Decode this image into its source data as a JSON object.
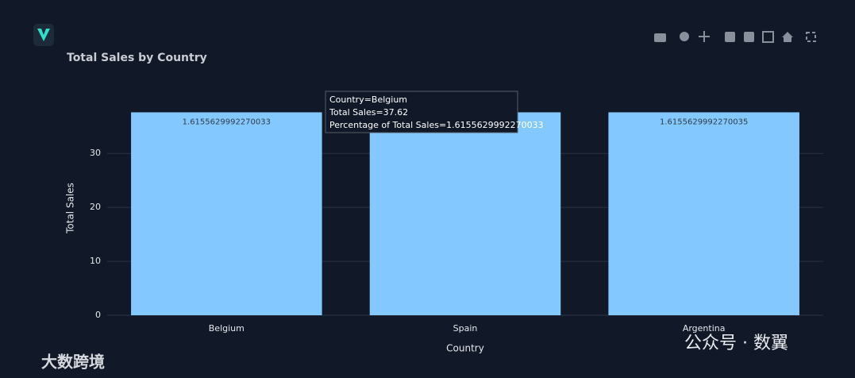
{
  "chart_data": {
    "type": "bar",
    "title": "Total Sales by Country",
    "x_label": "Country",
    "y_label": "Total Sales",
    "categories": [
      "Belgium",
      "Spain",
      "Argentina"
    ],
    "values": [
      37.62,
      37.62,
      37.62
    ],
    "bar_labels": [
      "1.6155629992270033",
      null,
      "1.6155629992270035"
    ],
    "color": "#83c9ff",
    "ylim": [
      0,
      39.6
    ],
    "yticks": [
      0,
      10,
      20,
      30
    ],
    "grid": true,
    "tooltip": [
      "Country=Belgium",
      "Total Sales=37.62",
      "Percentage of Total Sales=1.6155629992270033"
    ],
    "watermarks": [
      "大数跨境",
      "公众号 · 数翼"
    ]
  }
}
